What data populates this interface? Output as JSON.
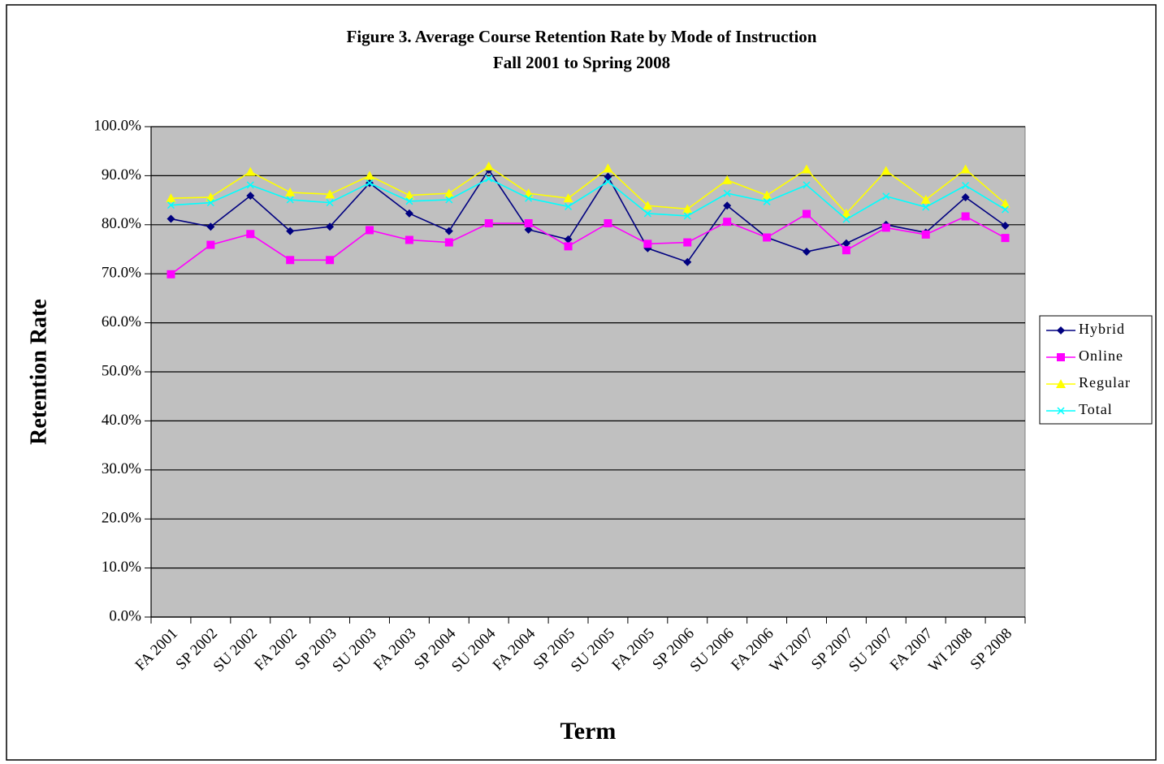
{
  "chart_data": {
    "type": "line",
    "title": "Figure 3. Average Course Retention Rate by Mode of Instruction",
    "subtitle": "Fall 2001 to Spring 2008",
    "x_label": "Term",
    "y_label": "Retention Rate",
    "categories": [
      "FA 2001",
      "SP 2002",
      "SU 2002",
      "FA 2002",
      "SP 2003",
      "SU 2003",
      "FA 2003",
      "SP 2004",
      "SU 2004",
      "FA 2004",
      "SP 2005",
      "SU 2005",
      "FA 2005",
      "SP 2006",
      "SU 2006",
      "FA 2006",
      "WI 2007",
      "SP 2007",
      "SU 2007",
      "FA 2007",
      "WI 2008",
      "SP 2008"
    ],
    "series": [
      {
        "name": "Hybrid",
        "color": "#000080",
        "marker": "diamond",
        "values": [
          81.2,
          79.6,
          85.9,
          78.7,
          79.6,
          88.5,
          82.3,
          78.7,
          91.2,
          79.0,
          77.0,
          89.8,
          75.2,
          72.4,
          83.9,
          77.4,
          74.5,
          76.2,
          80.0,
          78.4,
          85.6,
          79.8
        ]
      },
      {
        "name": "Online",
        "color": "#ff00ff",
        "marker": "square",
        "values": [
          69.9,
          75.9,
          78.1,
          72.8,
          72.8,
          78.9,
          76.9,
          76.4,
          80.3,
          80.3,
          75.6,
          80.3,
          76.1,
          76.4,
          80.6,
          77.4,
          82.2,
          74.8,
          79.4,
          78.0,
          81.7,
          77.3
        ]
      },
      {
        "name": "Regular",
        "color": "#ffff00",
        "marker": "triangle",
        "values": [
          85.4,
          85.6,
          90.8,
          86.6,
          86.2,
          90.0,
          86.0,
          86.4,
          91.9,
          86.4,
          85.4,
          91.5,
          83.9,
          83.2,
          89.1,
          86.0,
          91.3,
          82.3,
          91.0,
          85.1,
          91.3,
          84.3
        ]
      },
      {
        "name": "Total",
        "color": "#00ffff",
        "marker": "x",
        "values": [
          84.0,
          84.5,
          88.1,
          85.1,
          84.5,
          88.5,
          84.8,
          85.1,
          89.4,
          85.4,
          83.7,
          88.8,
          82.3,
          81.8,
          86.4,
          84.7,
          88.1,
          81.1,
          85.8,
          83.6,
          88.0,
          83.1
        ]
      }
    ],
    "ylim": [
      0,
      100
    ],
    "yticks": [
      {
        "value": 0,
        "label": "0.0%"
      },
      {
        "value": 10,
        "label": "10.0%"
      },
      {
        "value": 20,
        "label": "20.0%"
      },
      {
        "value": 30,
        "label": "30.0%"
      },
      {
        "value": 40,
        "label": "40.0%"
      },
      {
        "value": 50,
        "label": "50.0%"
      },
      {
        "value": 60,
        "label": "60.0%"
      },
      {
        "value": 70,
        "label": "70.0%"
      },
      {
        "value": 80,
        "label": "80.0%"
      },
      {
        "value": 90,
        "label": "90.0%"
      },
      {
        "value": 100,
        "label": "100.0%"
      }
    ],
    "grid": true,
    "legend": "right",
    "plot_background": "#c0c0c0"
  }
}
